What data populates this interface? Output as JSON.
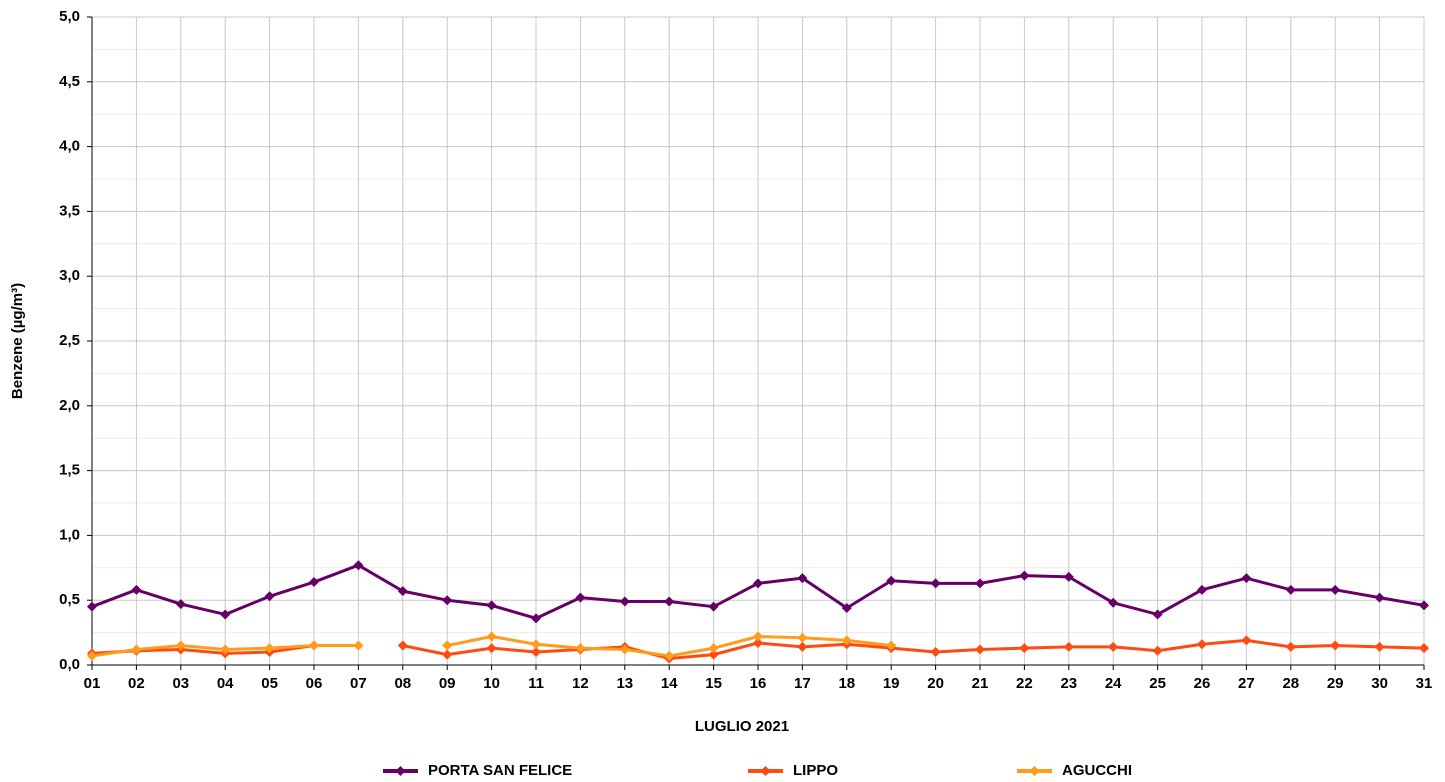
{
  "chart_data": {
    "type": "line",
    "x_label": "LUGLIO 2021",
    "y_label": "Benzene (µg/m³)",
    "categories": [
      "01",
      "02",
      "03",
      "04",
      "05",
      "06",
      "07",
      "08",
      "09",
      "10",
      "11",
      "12",
      "13",
      "14",
      "15",
      "16",
      "17",
      "18",
      "19",
      "20",
      "21",
      "22",
      "23",
      "24",
      "25",
      "26",
      "27",
      "28",
      "29",
      "30",
      "31"
    ],
    "series": [
      {
        "name": "PORTA SAN FELICE",
        "color": "#660066",
        "values": [
          0.45,
          0.58,
          0.47,
          0.39,
          0.53,
          0.64,
          0.77,
          0.57,
          0.5,
          0.46,
          0.36,
          0.52,
          0.49,
          0.49,
          0.45,
          0.63,
          0.67,
          0.44,
          0.65,
          0.63,
          0.63,
          0.69,
          0.68,
          0.48,
          0.39,
          0.58,
          0.67,
          0.58,
          0.58,
          0.52,
          0.46
        ]
      },
      {
        "name": "LIPPO",
        "color": "#ff4a12",
        "values": [
          0.09,
          0.11,
          0.12,
          0.09,
          0.1,
          0.15,
          null,
          0.15,
          0.08,
          0.13,
          0.1,
          0.12,
          0.14,
          0.05,
          0.08,
          0.17,
          0.14,
          0.16,
          0.13,
          0.1,
          0.12,
          0.13,
          0.14,
          0.14,
          0.11,
          0.16,
          0.19,
          0.14,
          0.15,
          0.14,
          0.13
        ]
      },
      {
        "name": "AGUCCHI",
        "color": "#ff9c1a",
        "values": [
          0.07,
          0.12,
          0.15,
          0.12,
          0.13,
          0.15,
          0.15,
          null,
          0.15,
          0.22,
          0.16,
          0.13,
          0.12,
          0.07,
          0.13,
          0.22,
          0.21,
          0.19,
          0.15,
          null,
          null,
          null,
          null,
          null,
          null,
          null,
          null,
          null,
          null,
          null,
          null
        ]
      }
    ],
    "ylim": [
      0,
      5
    ],
    "yticks": [
      {
        "value": 0,
        "label": "0,0"
      },
      {
        "value": 0.5,
        "label": "0,5"
      },
      {
        "value": 1,
        "label": "1,0"
      },
      {
        "value": 1.5,
        "label": "1,5"
      },
      {
        "value": 2,
        "label": "2,0"
      },
      {
        "value": 2.5,
        "label": "2,5"
      },
      {
        "value": 3,
        "label": "3,0"
      },
      {
        "value": 3.5,
        "label": "3,5"
      },
      {
        "value": 4,
        "label": "4,0"
      },
      {
        "value": 4.5,
        "label": "4,5"
      },
      {
        "value": 5,
        "label": "5,0"
      }
    ],
    "grid": true,
    "legend": "bottom"
  }
}
